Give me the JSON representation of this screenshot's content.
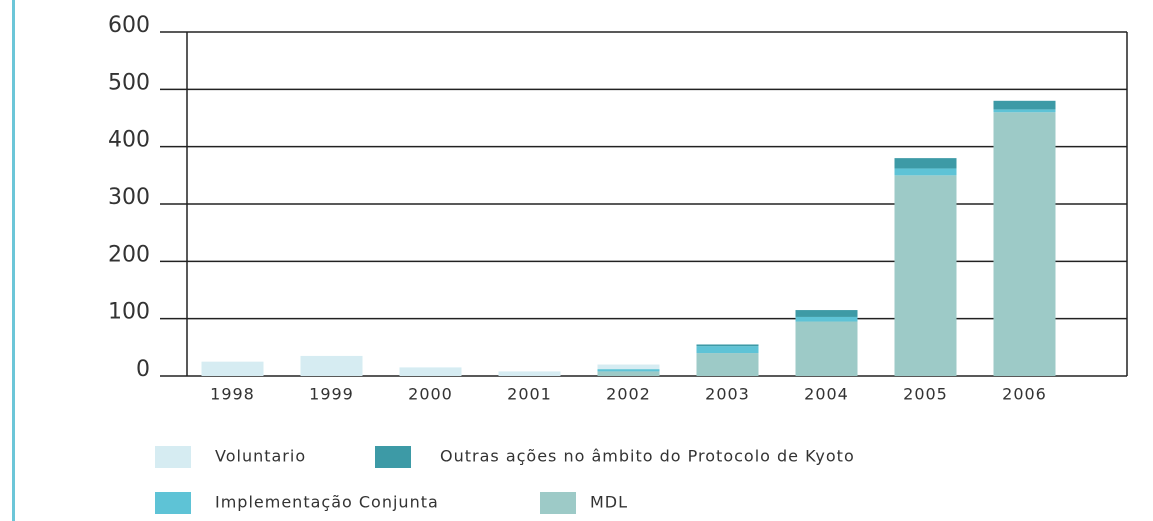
{
  "chart_data": {
    "type": "stacked_bar",
    "categories": [
      "1998",
      "1999",
      "2000",
      "2001",
      "2002",
      "2003",
      "2004",
      "2005",
      "2006"
    ],
    "series": [
      {
        "name": "Voluntario",
        "color": "#d6ecf2",
        "values": [
          25,
          35,
          15,
          8,
          8,
          0,
          0,
          0,
          0
        ]
      },
      {
        "name": "Outras ações no âmbito do Protocolo de Kyoto",
        "color": "#3d9aa6",
        "values": [
          0,
          0,
          0,
          0,
          0,
          3,
          12,
          18,
          15
        ]
      },
      {
        "name": "Implementação Conjunta",
        "color": "#5ec3d6",
        "values": [
          0,
          0,
          0,
          0,
          4,
          12,
          8,
          12,
          5
        ]
      },
      {
        "name": "MDL",
        "color": "#9dcac7",
        "values": [
          0,
          0,
          0,
          0,
          8,
          40,
          95,
          350,
          460
        ]
      }
    ],
    "ylim": [
      0,
      600
    ],
    "yticks": [
      0,
      100,
      200,
      300,
      400,
      500,
      600
    ],
    "grid": true
  }
}
